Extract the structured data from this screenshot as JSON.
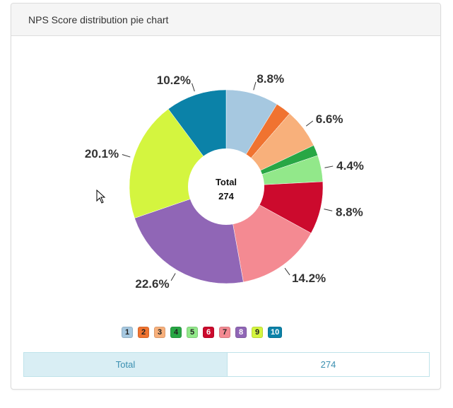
{
  "panel": {
    "title": "NPS Score distribution pie chart"
  },
  "chart_data": {
    "type": "pie",
    "style": "donut",
    "center_label": "Total",
    "center_value": "274",
    "categories": [
      "1",
      "2",
      "3",
      "4",
      "5",
      "6",
      "7",
      "8",
      "9",
      "10"
    ],
    "values": [
      8.8,
      2.6,
      6.6,
      1.8,
      4.4,
      8.8,
      14.2,
      22.6,
      20.1,
      10.2
    ],
    "labels": [
      "8.8%",
      "",
      "6.6%",
      "",
      "4.4%",
      "8.8%",
      "14.2%",
      "22.6%",
      "20.1%",
      "10.2%"
    ],
    "colors": [
      "#a6c8e0",
      "#f07330",
      "#f8b07b",
      "#28a745",
      "#92e88a",
      "#cc0a2d",
      "#f48a92",
      "#9066b6",
      "#d4f53f",
      "#0b82a8"
    ],
    "legend_text_colors": [
      "#222",
      "#222",
      "#222",
      "#222",
      "#222",
      "#ffffff",
      "#222",
      "#ffffff",
      "#222",
      "#ffffff"
    ],
    "legend_position": "bottom"
  },
  "summary": {
    "label": "Total",
    "value": "274"
  }
}
